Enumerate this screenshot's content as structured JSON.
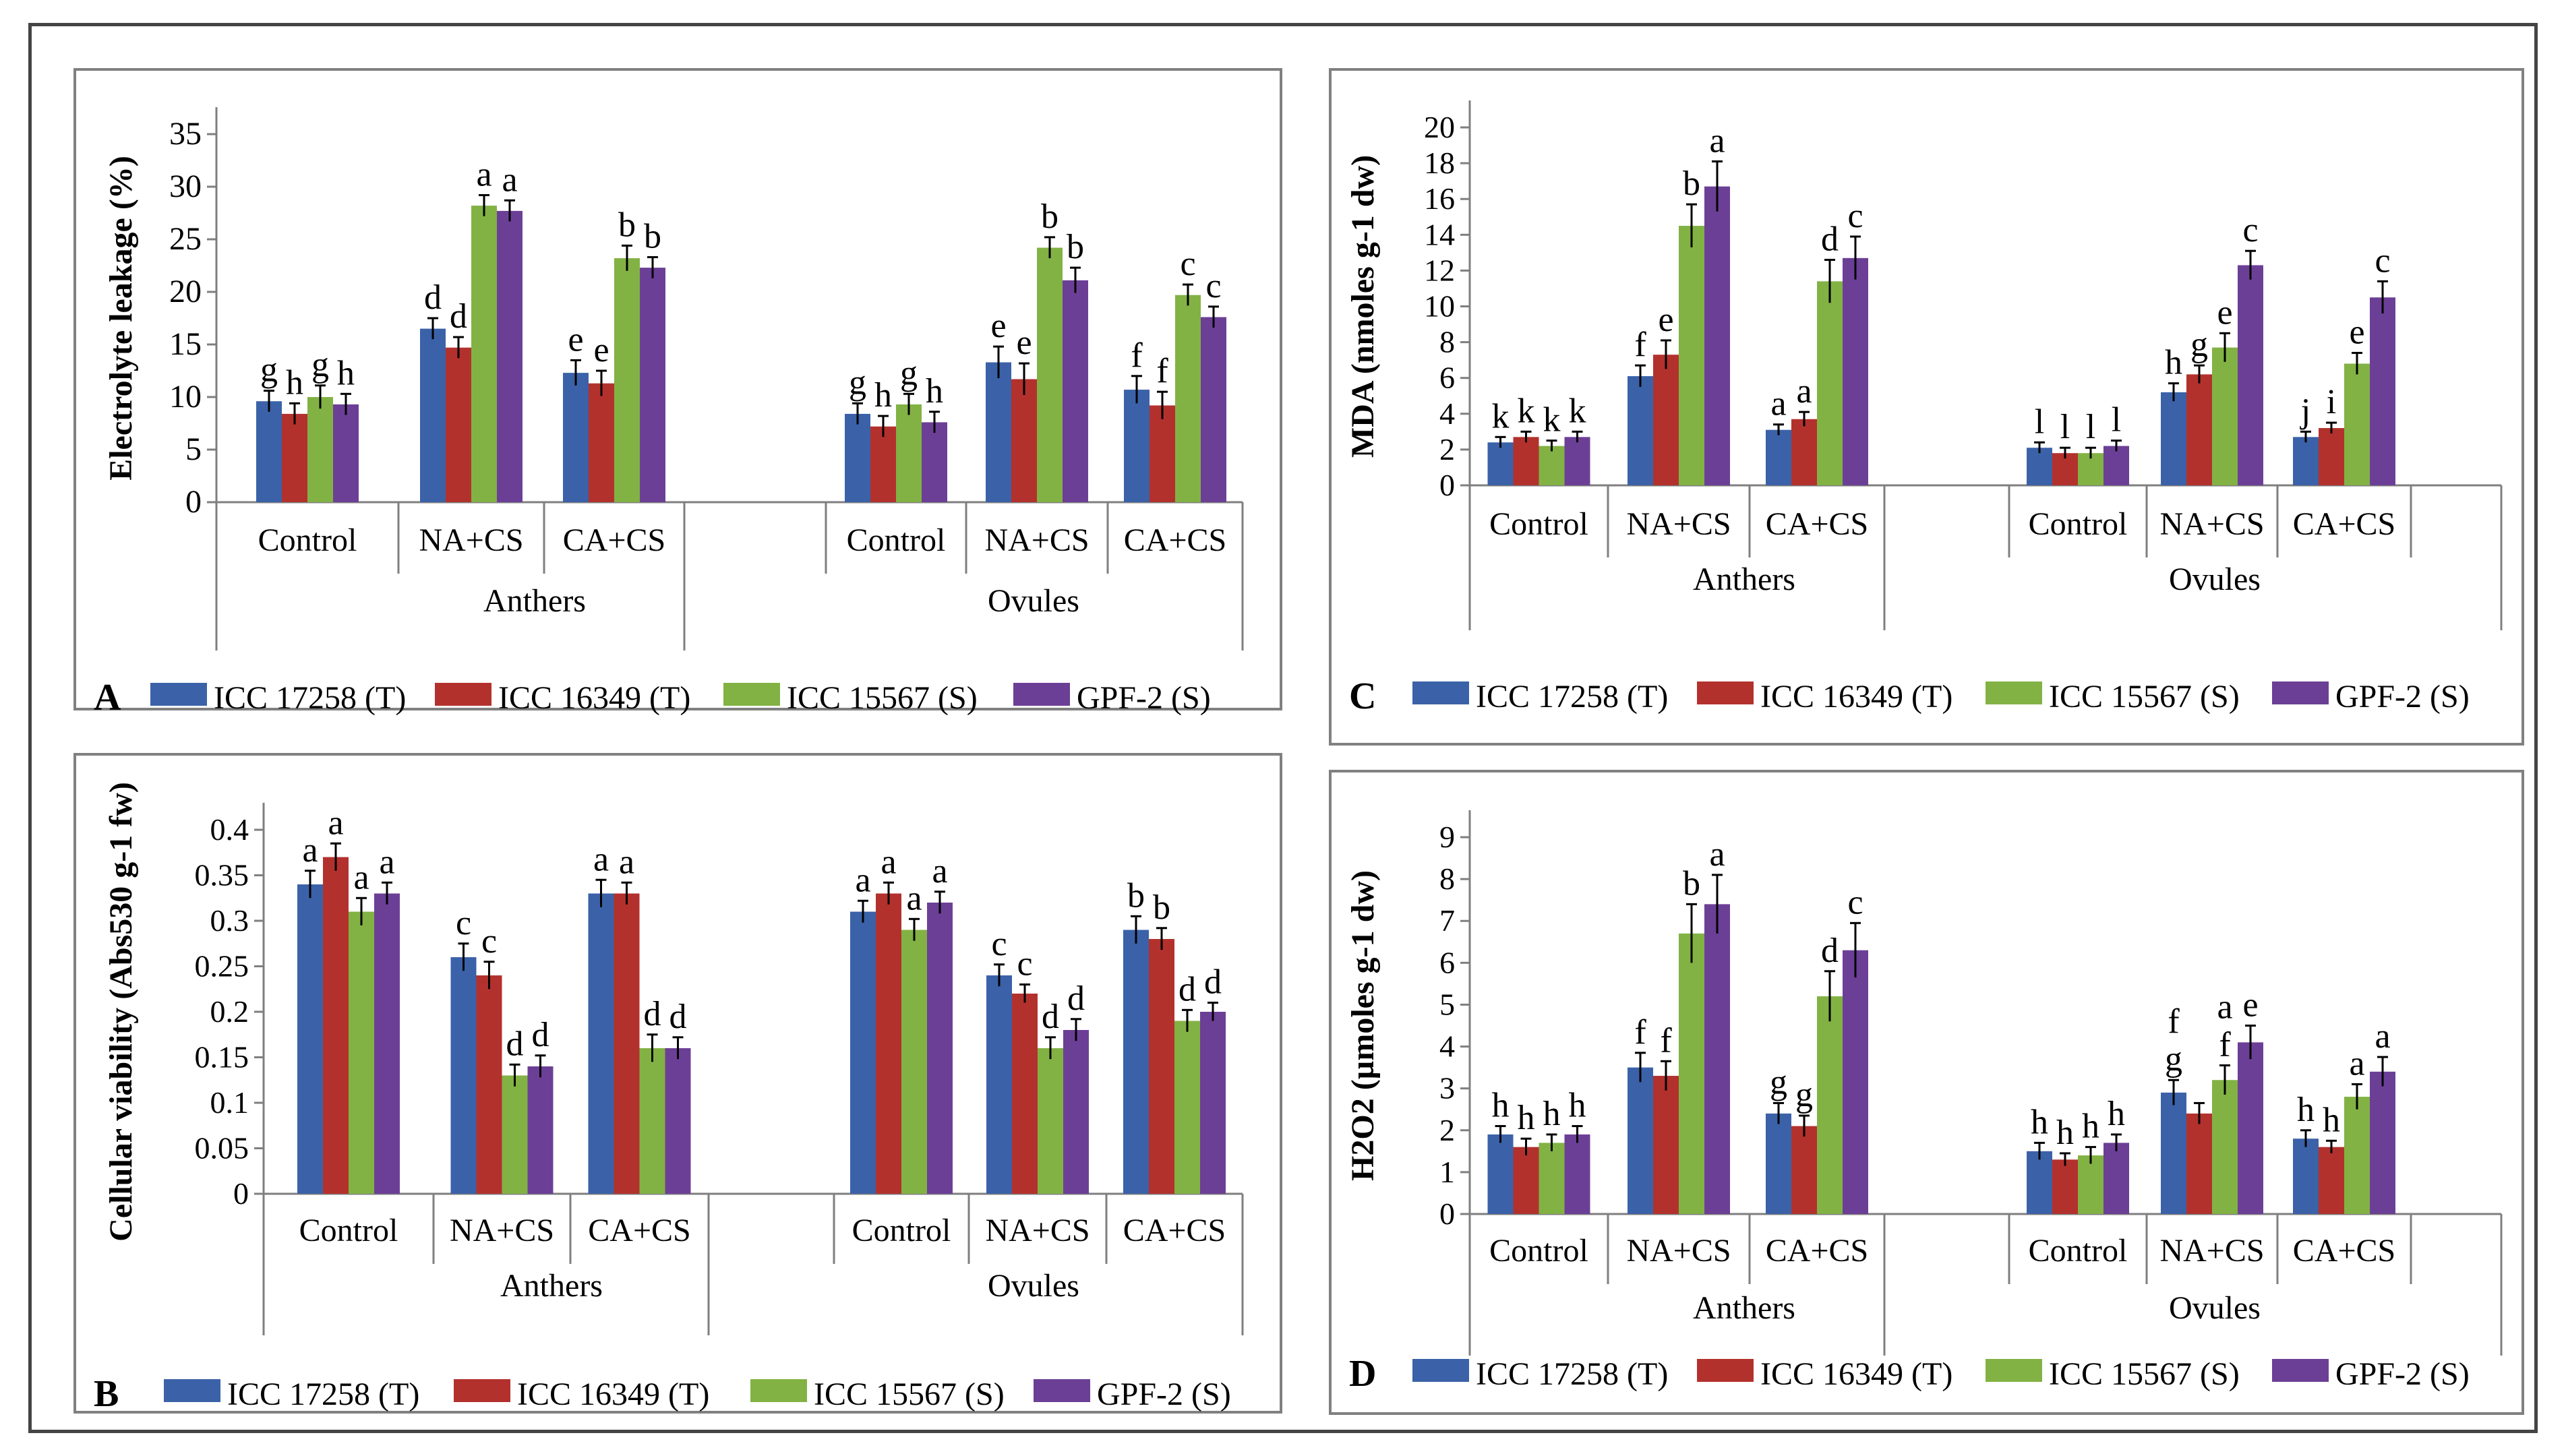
{
  "legend_series": [
    {
      "name": "ICC 17258 (T)",
      "color": "#3b62a8"
    },
    {
      "name": "ICC 16349 (T)",
      "color": "#b3312d"
    },
    {
      "name": "ICC 15567 (S)",
      "color": "#82b244"
    },
    {
      "name": "GPF-2 (S)",
      "color": "#6c3f96"
    }
  ],
  "chart_data": [
    {
      "panel": "A",
      "type": "bar",
      "ylabel": "Electrolyte leakage (%)",
      "ylim": [
        0,
        35
      ],
      "yticks": [
        0,
        5,
        10,
        15,
        20,
        25,
        30,
        35
      ],
      "groups": [
        "Anthers",
        "Ovules"
      ],
      "categories": [
        "Control",
        "NA+CS",
        "CA+CS"
      ],
      "series_names": [
        "ICC 17258 (T)",
        "ICC 16349 (T)",
        "ICC 15567 (S)",
        "GPF-2 (S)"
      ],
      "values": [
        [
          [
            9.6,
            8.4,
            10.0,
            9.3
          ],
          [
            16.5,
            14.7,
            28.2,
            27.7
          ],
          [
            12.3,
            11.3,
            23.2,
            22.3
          ]
        ],
        [
          [
            8.4,
            7.2,
            9.3,
            7.6
          ],
          [
            13.3,
            11.7,
            24.2,
            21.1
          ],
          [
            10.7,
            9.2,
            19.7,
            17.6
          ]
        ]
      ],
      "errors": [
        [
          [
            1.0,
            1.0,
            1.1,
            1.0
          ],
          [
            1.0,
            1.0,
            1.0,
            1.0
          ],
          [
            1.2,
            1.2,
            1.2,
            1.0
          ]
        ],
        [
          [
            1.0,
            1.0,
            1.0,
            1.0
          ],
          [
            1.5,
            1.5,
            1.0,
            1.2
          ],
          [
            1.3,
            1.3,
            1.0,
            1.0
          ]
        ]
      ],
      "letters": [
        [
          [
            "g",
            "h",
            "g",
            "h"
          ],
          [
            "d",
            "d",
            "a",
            "a"
          ],
          [
            "e",
            "e",
            "b",
            "b"
          ]
        ],
        [
          [
            "g",
            "h",
            "g",
            "h"
          ],
          [
            "e",
            "e",
            "b",
            "b"
          ],
          [
            "f",
            "f",
            "c",
            "c"
          ]
        ]
      ]
    },
    {
      "panel": "B",
      "type": "bar",
      "ylabel": "Cellular viability (Abs530 g-1 fw)",
      "ylim": [
        0,
        0.4
      ],
      "yticks": [
        0,
        0.05,
        0.1,
        0.15,
        0.2,
        0.25,
        0.3,
        0.35,
        0.4
      ],
      "groups": [
        "Anthers",
        "Ovules"
      ],
      "categories": [
        "Control",
        "NA+CS",
        "CA+CS"
      ],
      "series_names": [
        "ICC 17258 (T)",
        "ICC 16349 (T)",
        "ICC 15567 (S)",
        "GPF-2 (S)"
      ],
      "values": [
        [
          [
            0.34,
            0.37,
            0.31,
            0.33
          ],
          [
            0.26,
            0.24,
            0.13,
            0.14
          ],
          [
            0.33,
            0.33,
            0.16,
            0.16
          ]
        ],
        [
          [
            0.31,
            0.33,
            0.29,
            0.32
          ],
          [
            0.24,
            0.22,
            0.16,
            0.18
          ],
          [
            0.29,
            0.28,
            0.19,
            0.2
          ]
        ]
      ],
      "errors": [
        [
          [
            0.015,
            0.015,
            0.015,
            0.012
          ],
          [
            0.015,
            0.015,
            0.012,
            0.012
          ],
          [
            0.015,
            0.012,
            0.015,
            0.012
          ]
        ],
        [
          [
            0.012,
            0.012,
            0.012,
            0.012
          ],
          [
            0.012,
            0.01,
            0.012,
            0.012
          ],
          [
            0.015,
            0.012,
            0.012,
            0.01
          ]
        ]
      ],
      "letters": [
        [
          [
            "a",
            "a",
            "a",
            "a"
          ],
          [
            "c",
            "c",
            "d",
            "d"
          ],
          [
            "a",
            "a",
            "d",
            "d"
          ]
        ],
        [
          [
            "a",
            "a",
            "a",
            "a"
          ],
          [
            "c",
            "c",
            "d",
            "d"
          ],
          [
            "b",
            "b",
            "d",
            "d"
          ]
        ]
      ]
    },
    {
      "panel": "C",
      "type": "bar",
      "ylabel": "MDA (nmoles g-1 dw)",
      "ylim": [
        0,
        20
      ],
      "yticks": [
        0,
        2,
        4,
        6,
        8,
        10,
        12,
        14,
        16,
        18,
        20
      ],
      "groups": [
        "Anthers",
        "Ovules"
      ],
      "categories": [
        "Control",
        "NA+CS",
        "CA+CS"
      ],
      "series_names": [
        "ICC 17258 (T)",
        "ICC 16349 (T)",
        "ICC 15567 (S)",
        "GPF-2 (S)"
      ],
      "values": [
        [
          [
            2.4,
            2.7,
            2.2,
            2.7
          ],
          [
            6.1,
            7.3,
            14.5,
            16.7
          ],
          [
            3.1,
            3.7,
            11.4,
            12.7
          ]
        ],
        [
          [
            2.1,
            1.8,
            1.8,
            2.2
          ],
          [
            5.2,
            6.2,
            7.7,
            12.3
          ],
          [
            2.7,
            3.2,
            6.8,
            10.5
          ]
        ]
      ],
      "errors": [
        [
          [
            0.3,
            0.3,
            0.3,
            0.3
          ],
          [
            0.6,
            0.8,
            1.2,
            1.4
          ],
          [
            0.3,
            0.4,
            1.2,
            1.2
          ]
        ],
        [
          [
            0.3,
            0.3,
            0.3,
            0.3
          ],
          [
            0.5,
            0.5,
            0.8,
            0.8
          ],
          [
            0.3,
            0.3,
            0.6,
            0.9
          ]
        ]
      ],
      "letters": [
        [
          [
            "k",
            "k",
            "k",
            "k"
          ],
          [
            "f",
            "e",
            "b",
            "a"
          ],
          [
            "a",
            "a",
            "d",
            "c"
          ]
        ],
        [
          [
            "l",
            "l",
            "l",
            "l"
          ],
          [
            "h",
            "g",
            "e",
            "c"
          ],
          [
            "j",
            "i",
            "e",
            "c"
          ]
        ]
      ]
    },
    {
      "panel": "D",
      "type": "bar",
      "ylabel": "H2O2 (µmoles g-1 dw)",
      "ylim": [
        0,
        9
      ],
      "yticks": [
        0,
        1,
        2,
        3,
        4,
        5,
        6,
        7,
        8,
        9
      ],
      "groups": [
        "Anthers",
        "Ovules"
      ],
      "categories": [
        "Control",
        "NA+CS",
        "CA+CS"
      ],
      "series_names": [
        "ICC 17258 (T)",
        "ICC 16349 (T)",
        "ICC 15567 (S)",
        "GPF-2 (S)"
      ],
      "values": [
        [
          [
            1.9,
            1.6,
            1.7,
            1.9
          ],
          [
            3.5,
            3.3,
            6.7,
            7.4
          ],
          [
            2.4,
            2.1,
            5.2,
            6.3
          ]
        ],
        [
          [
            1.5,
            1.3,
            1.4,
            1.7
          ],
          [
            2.9,
            2.4,
            3.2,
            4.1
          ],
          [
            1.8,
            1.6,
            2.8,
            3.4
          ]
        ]
      ],
      "errors": [
        [
          [
            0.2,
            0.2,
            0.2,
            0.2
          ],
          [
            0.35,
            0.35,
            0.7,
            0.7
          ],
          [
            0.25,
            0.25,
            0.6,
            0.65
          ]
        ],
        [
          [
            0.2,
            0.15,
            0.2,
            0.2
          ],
          [
            0.3,
            0.25,
            0.35,
            0.4
          ],
          [
            0.2,
            0.15,
            0.3,
            0.35
          ]
        ]
      ],
      "letters": [
        [
          [
            "h",
            "h",
            "h",
            "h"
          ],
          [
            "f",
            "f",
            "b",
            "a"
          ],
          [
            "g",
            "g",
            "d",
            "c"
          ]
        ],
        [
          [
            "h",
            "h",
            "h",
            "h"
          ],
          [
            "f g",
            "",
            "a f",
            "e"
          ],
          [
            "h",
            "h",
            "a",
            "a"
          ]
        ]
      ]
    }
  ]
}
